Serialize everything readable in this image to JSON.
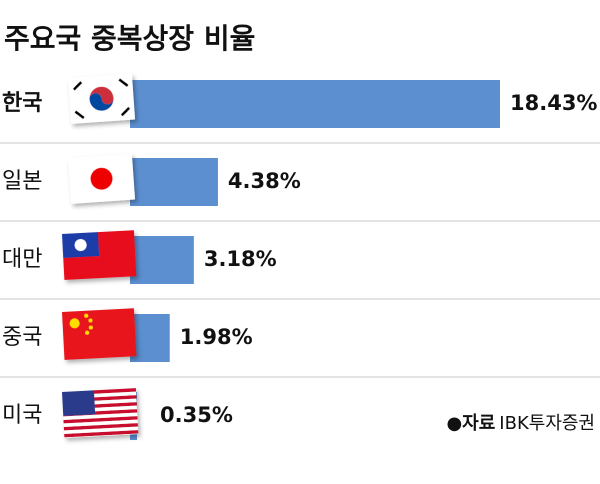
{
  "chart_data": {
    "type": "bar",
    "orientation": "horizontal",
    "title": "주요국 중복상장 비율",
    "categories": [
      "한국",
      "일본",
      "대만",
      "중국",
      "미국"
    ],
    "values": [
      18.43,
      4.38,
      3.18,
      1.98,
      0.35
    ],
    "value_labels": [
      "18.43%",
      "4.38%",
      "3.18%",
      "1.98%",
      "0.35%"
    ],
    "color": "#5b8fd0",
    "source_label": "●자료",
    "source": "IBK투자증권"
  }
}
